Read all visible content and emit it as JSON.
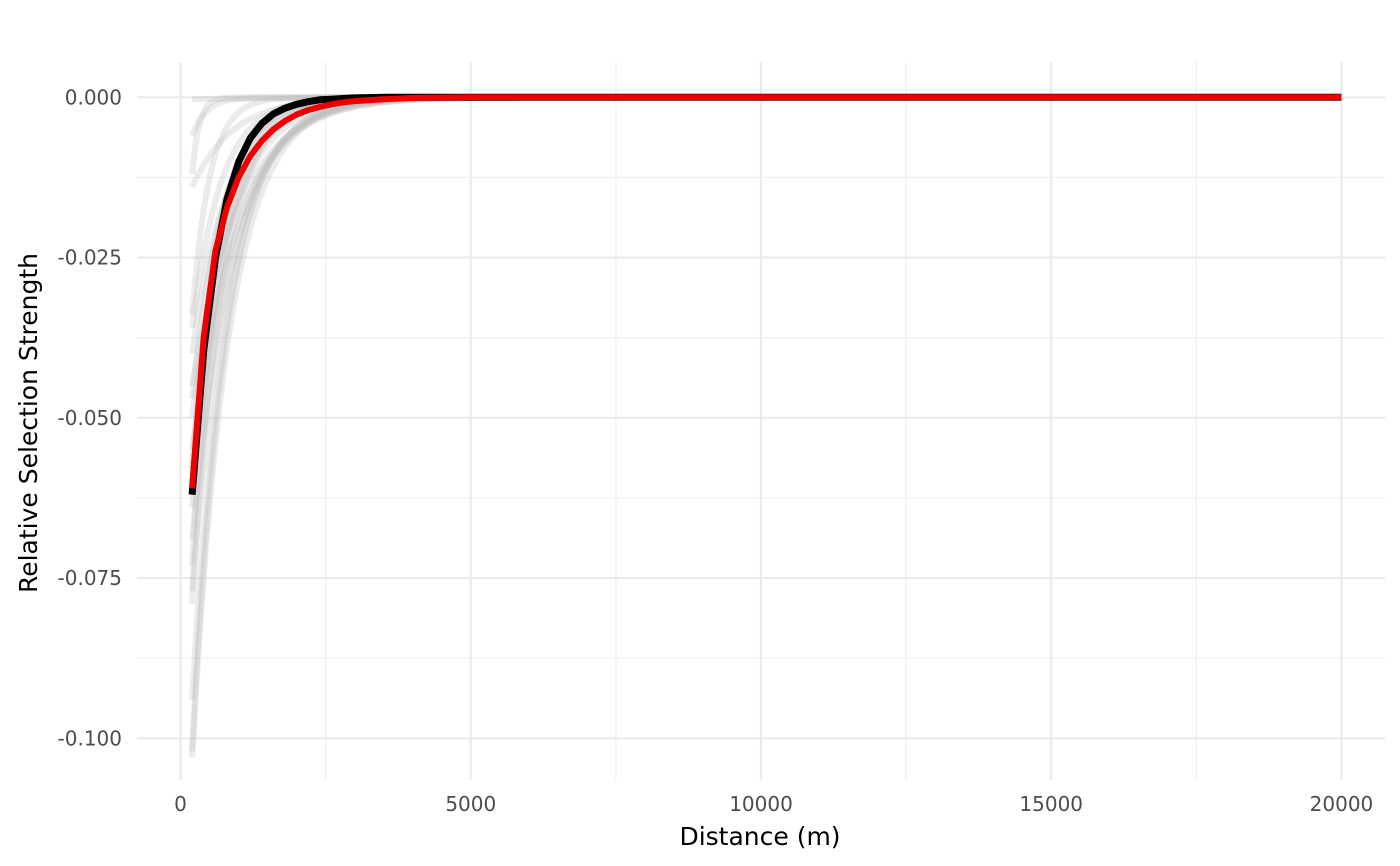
{
  "chart_data": {
    "type": "line",
    "title": "",
    "xlabel": "Distance (m)",
    "ylabel": "Relative Selection Strength",
    "xlim": [
      -750,
      20750
    ],
    "ylim": [
      -0.1065,
      0.0055
    ],
    "x_ticks": [
      0,
      5000,
      10000,
      15000,
      20000
    ],
    "x_tick_labels": [
      "0",
      "5000",
      "10000",
      "15000",
      "20000"
    ],
    "y_ticks": [
      0,
      -0.025,
      -0.05,
      -0.075,
      -0.1
    ],
    "y_tick_labels": [
      "0.000",
      "-0.025",
      "-0.050",
      "-0.075",
      "-0.100"
    ],
    "x_minor_ticks": [
      2500,
      7500,
      12500,
      17500
    ],
    "y_minor_ticks": [
      -0.0125,
      -0.0375,
      -0.0625,
      -0.0875
    ],
    "grid": true,
    "legend": "none",
    "x_domain": [
      200,
      20000
    ],
    "background_series": {
      "color": "#bdbdbd",
      "lines": [
        {
          "y0": -0.103,
          "decay_m": 620
        },
        {
          "y0": -0.102,
          "decay_m": 580
        },
        {
          "y0": -0.094,
          "decay_m": 600
        },
        {
          "y0": -0.079,
          "decay_m": 520
        },
        {
          "y0": -0.077,
          "decay_m": 650
        },
        {
          "y0": -0.073,
          "decay_m": 480
        },
        {
          "y0": -0.069,
          "decay_m": 700
        },
        {
          "y0": -0.064,
          "decay_m": 560
        },
        {
          "y0": -0.06,
          "decay_m": 720
        },
        {
          "y0": -0.058,
          "decay_m": 450
        },
        {
          "y0": -0.055,
          "decay_m": 780
        },
        {
          "y0": -0.05,
          "decay_m": 680
        },
        {
          "y0": -0.047,
          "decay_m": 530
        },
        {
          "y0": -0.045,
          "decay_m": 820
        },
        {
          "y0": -0.04,
          "decay_m": 610
        },
        {
          "y0": -0.036,
          "decay_m": 500
        },
        {
          "y0": -0.034,
          "decay_m": 300
        },
        {
          "y0": -0.014,
          "decay_m": 700
        },
        {
          "y0": -0.012,
          "decay_m": 120
        },
        {
          "y0": -0.006,
          "decay_m": 250
        },
        {
          "y0": -0.0003,
          "decay_m": 3000
        }
      ]
    },
    "series": [
      {
        "color": "#000000",
        "x": [
          200,
          400,
          600,
          800,
          1000,
          1200,
          1400,
          1600,
          1800,
          2000,
          2200,
          2400,
          2600,
          2800,
          3000,
          3500,
          4000,
          5000,
          6000,
          8000,
          10000,
          12000,
          14000,
          16000,
          18000,
          20000
        ],
        "y": [
          -0.062,
          -0.0394,
          -0.0251,
          -0.0159,
          -0.0101,
          -0.0064,
          -0.0041,
          -0.0026,
          -0.0017,
          -0.0011,
          -0.0007,
          -0.0004,
          -0.0003,
          -0.0002,
          -0.0001,
          0,
          0,
          0,
          0,
          0,
          0,
          0,
          0,
          0,
          0,
          0
        ]
      },
      {
        "color": "#ee0000",
        "x": [
          200,
          400,
          600,
          800,
          1000,
          1200,
          1400,
          1600,
          1800,
          2000,
          2200,
          2400,
          2600,
          2800,
          3000,
          3500,
          4000,
          5000,
          6000,
          8000,
          10000,
          12000,
          14000,
          16000,
          18000,
          20000
        ],
        "y": [
          -0.061,
          -0.0373,
          -0.024,
          -0.0172,
          -0.0125,
          -0.0092,
          -0.0068,
          -0.005,
          -0.0037,
          -0.0027,
          -0.002,
          -0.0015,
          -0.0011,
          -0.0008,
          -0.0006,
          -0.0003,
          -0.0001,
          0,
          0,
          0,
          0,
          0,
          0,
          0,
          0,
          0
        ]
      }
    ]
  }
}
